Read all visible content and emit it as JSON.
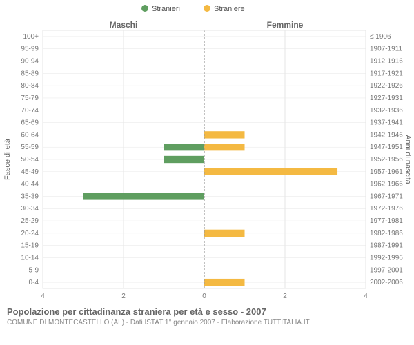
{
  "legend": {
    "male": {
      "label": "Stranieri",
      "color": "#5f9e60"
    },
    "female": {
      "label": "Straniere",
      "color": "#f4b942"
    }
  },
  "side_titles": {
    "left": "Maschi",
    "right": "Femmine"
  },
  "axis_titles": {
    "left": "Fasce di età",
    "right": "Anni di nascita"
  },
  "caption": {
    "title": "Popolazione per cittadinanza straniera per età e sesso - 2007",
    "subtitle": "COMUNE DI MONTECASTELLO (AL) - Dati ISTAT 1° gennaio 2007 - Elaborazione TUTTITALIA.IT"
  },
  "x_axis": {
    "max": 4,
    "ticks": [
      4,
      2,
      0,
      2,
      4
    ]
  },
  "plot": {
    "background_color": "#ffffff",
    "grid_color": "#e6e6e6",
    "center_line_color": "#999999",
    "center_line_dash": "3 2",
    "bar_height_ratio": 0.58
  },
  "typography": {
    "tick_fontsize": 10,
    "axis_title_fontsize": 11,
    "side_title_fontsize": 12,
    "legend_fontsize": 11,
    "caption_title_fontsize": 13,
    "caption_sub_fontsize": 10
  },
  "rows": [
    {
      "age": "100+",
      "birth": "≤ 1906",
      "m": 0,
      "f": 0
    },
    {
      "age": "95-99",
      "birth": "1907-1911",
      "m": 0,
      "f": 0
    },
    {
      "age": "90-94",
      "birth": "1912-1916",
      "m": 0,
      "f": 0
    },
    {
      "age": "85-89",
      "birth": "1917-1921",
      "m": 0,
      "f": 0
    },
    {
      "age": "80-84",
      "birth": "1922-1926",
      "m": 0,
      "f": 0
    },
    {
      "age": "75-79",
      "birth": "1927-1931",
      "m": 0,
      "f": 0
    },
    {
      "age": "70-74",
      "birth": "1932-1936",
      "m": 0,
      "f": 0
    },
    {
      "age": "65-69",
      "birth": "1937-1941",
      "m": 0,
      "f": 0
    },
    {
      "age": "60-64",
      "birth": "1942-1946",
      "m": 0,
      "f": 1
    },
    {
      "age": "55-59",
      "birth": "1947-1951",
      "m": 1,
      "f": 1
    },
    {
      "age": "50-54",
      "birth": "1952-1956",
      "m": 1,
      "f": 0
    },
    {
      "age": "45-49",
      "birth": "1957-1961",
      "m": 0,
      "f": 3.3
    },
    {
      "age": "40-44",
      "birth": "1962-1966",
      "m": 0,
      "f": 0
    },
    {
      "age": "35-39",
      "birth": "1967-1971",
      "m": 3,
      "f": 0
    },
    {
      "age": "30-34",
      "birth": "1972-1976",
      "m": 0,
      "f": 0
    },
    {
      "age": "25-29",
      "birth": "1977-1981",
      "m": 0,
      "f": 0
    },
    {
      "age": "20-24",
      "birth": "1982-1986",
      "m": 0,
      "f": 1
    },
    {
      "age": "15-19",
      "birth": "1987-1991",
      "m": 0,
      "f": 0
    },
    {
      "age": "10-14",
      "birth": "1992-1996",
      "m": 0,
      "f": 0
    },
    {
      "age": "5-9",
      "birth": "1997-2001",
      "m": 0,
      "f": 0
    },
    {
      "age": "0-4",
      "birth": "2002-2006",
      "m": 0,
      "f": 1
    }
  ]
}
